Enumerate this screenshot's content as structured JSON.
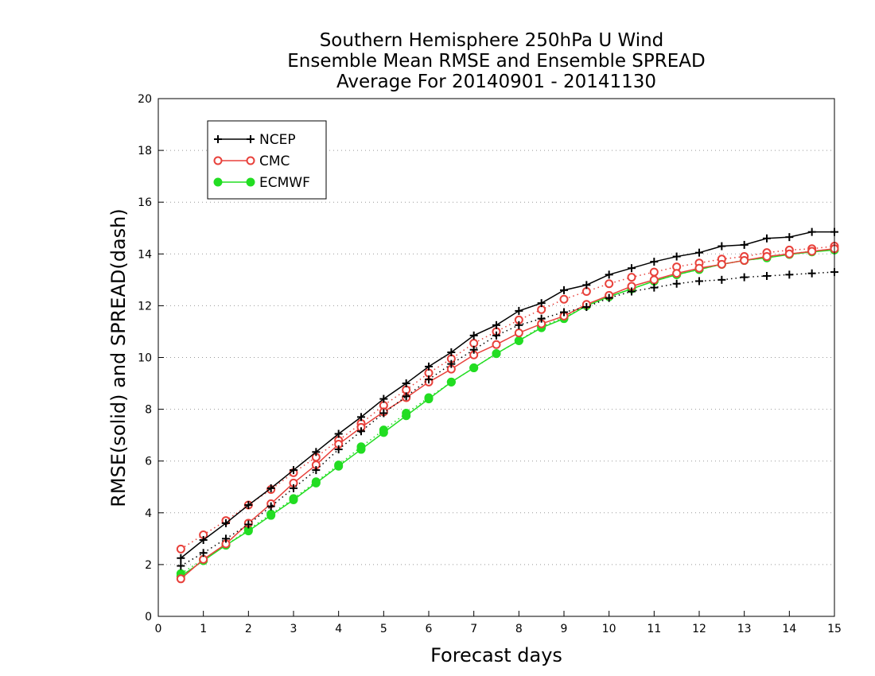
{
  "chart_data": {
    "type": "line",
    "title_lines": [
      "Southern Hemisphere 250hPa U Wind",
      "Ensemble Mean RMSE and Ensemble SPREAD",
      "Average For 20140901 - 20141130"
    ],
    "xlabel": "Forecast days",
    "ylabel": "RMSE(solid) and SPREAD(dash)",
    "xlim": [
      0,
      15
    ],
    "ylim": [
      0,
      20
    ],
    "xticks": [
      "0",
      "1",
      "2",
      "3",
      "4",
      "5",
      "6",
      "7",
      "8",
      "9",
      "10",
      "11",
      "12",
      "13",
      "14",
      "15"
    ],
    "yticks": [
      "0",
      "2",
      "4",
      "6",
      "8",
      "10",
      "12",
      "14",
      "16",
      "18",
      "20"
    ],
    "grid": "horizontal dotted",
    "legend_position": "top-left",
    "x": [
      0.5,
      1,
      1.5,
      2,
      2.5,
      3,
      3.5,
      4,
      4.5,
      5,
      5.5,
      6,
      6.5,
      7,
      7.5,
      8,
      8.5,
      9,
      9.5,
      10,
      10.5,
      11,
      11.5,
      12,
      12.5,
      13,
      13.5,
      14,
      14.5,
      15
    ],
    "series": [
      {
        "name": "NCEP",
        "color": "#000000",
        "marker": "plus",
        "rmse": [
          2.25,
          2.95,
          3.6,
          4.3,
          4.95,
          5.65,
          6.35,
          7.05,
          7.7,
          8.4,
          9.0,
          9.65,
          10.2,
          10.85,
          11.25,
          11.8,
          12.1,
          12.6,
          12.8,
          13.2,
          13.45,
          13.7,
          13.9,
          14.05,
          14.3,
          14.35,
          14.6,
          14.65,
          14.85,
          14.85
        ],
        "spread": [
          1.95,
          2.45,
          3.0,
          3.55,
          4.25,
          4.95,
          5.65,
          6.45,
          7.15,
          7.85,
          8.5,
          9.15,
          9.75,
          10.3,
          10.85,
          11.25,
          11.5,
          11.75,
          11.95,
          12.3,
          12.55,
          12.7,
          12.85,
          12.95,
          13.0,
          13.1,
          13.15,
          13.2,
          13.25,
          13.3
        ]
      },
      {
        "name": "CMC",
        "color": "#e8413b",
        "marker": "open-circle",
        "rmse": [
          1.45,
          2.2,
          2.8,
          3.6,
          4.35,
          5.15,
          5.85,
          6.65,
          7.3,
          7.9,
          8.45,
          9.05,
          9.55,
          10.1,
          10.5,
          10.95,
          11.3,
          11.6,
          12.05,
          12.4,
          12.75,
          13.0,
          13.25,
          13.45,
          13.6,
          13.75,
          13.9,
          14.0,
          14.1,
          14.2
        ],
        "spread": [
          2.6,
          3.15,
          3.7,
          4.3,
          4.9,
          5.55,
          6.15,
          6.8,
          7.45,
          8.15,
          8.75,
          9.4,
          9.95,
          10.55,
          11.0,
          11.45,
          11.85,
          12.25,
          12.55,
          12.85,
          13.1,
          13.3,
          13.5,
          13.65,
          13.8,
          13.9,
          14.05,
          14.15,
          14.2,
          14.3
        ]
      },
      {
        "name": "ECMWF",
        "color": "#22dd22",
        "marker": "filled-circle",
        "rmse": [
          1.55,
          2.15,
          2.75,
          3.3,
          3.9,
          4.5,
          5.15,
          5.8,
          6.45,
          7.1,
          7.75,
          8.4,
          9.05,
          9.6,
          10.15,
          10.65,
          11.15,
          11.5,
          12.0,
          12.35,
          12.65,
          12.95,
          13.2,
          13.4,
          13.6,
          13.75,
          13.85,
          13.98,
          14.08,
          14.15
        ],
        "spread": [
          1.65,
          2.2,
          2.75,
          3.35,
          3.95,
          4.55,
          5.2,
          5.85,
          6.55,
          7.2,
          7.85,
          8.45,
          9.05,
          9.6,
          10.15,
          10.65,
          11.2,
          11.55,
          12.0,
          12.35,
          12.65,
          12.95,
          13.2,
          13.4,
          13.6,
          13.75,
          13.85,
          14.0,
          14.1,
          14.2
        ]
      }
    ]
  }
}
